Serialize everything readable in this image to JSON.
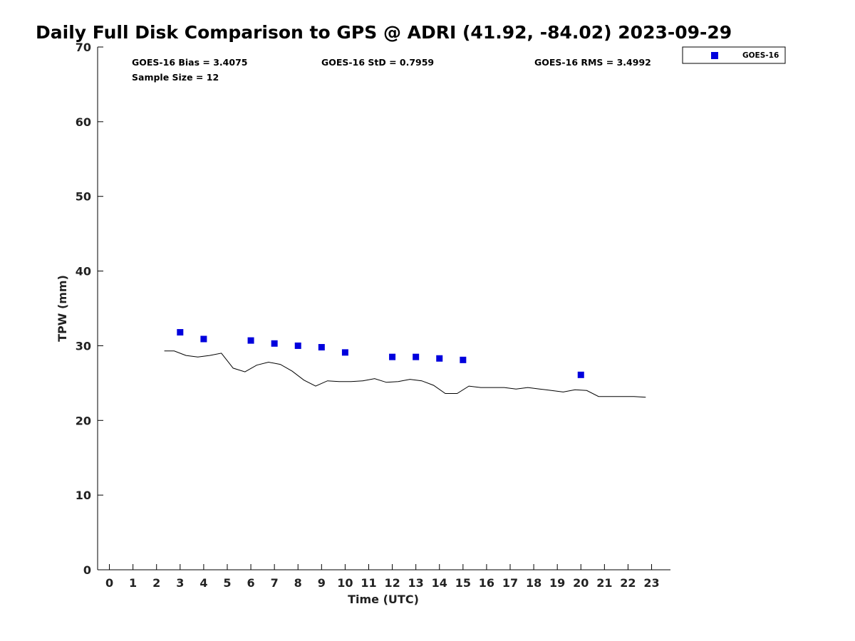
{
  "chart_data": {
    "type": "scatter",
    "title": "Daily Full Disk Comparison to GPS @ ADRI (41.92, -84.02) 2023-09-29",
    "xlabel": "Time (UTC)",
    "ylabel": "TPW (mm)",
    "xlim": [
      -0.5,
      23.8
    ],
    "ylim": [
      0,
      70
    ],
    "x_ticks": [
      0,
      1,
      2,
      3,
      4,
      5,
      6,
      7,
      8,
      9,
      10,
      11,
      12,
      13,
      14,
      15,
      16,
      17,
      18,
      19,
      20,
      21,
      22,
      23
    ],
    "y_ticks": [
      0,
      10,
      20,
      30,
      40,
      50,
      60,
      70
    ],
    "grid": false,
    "legend_position": "top-right",
    "stats": {
      "bias": "GOES-16 Bias = 3.4075",
      "std": "GOES-16 StD = 0.7959",
      "rms": "GOES-16 RMS = 3.4992",
      "sample": "Sample Size = 12"
    },
    "series": [
      {
        "name": "GOES-16",
        "type": "scatter",
        "color": "#0000dd",
        "marker": "square",
        "x": [
          3,
          4,
          6,
          7,
          8,
          9,
          10,
          12,
          13,
          14,
          15,
          20
        ],
        "y": [
          31.8,
          30.9,
          30.7,
          30.3,
          30.0,
          29.8,
          29.1,
          28.5,
          28.5,
          28.3,
          28.1,
          26.1
        ]
      },
      {
        "type": "line",
        "color": "#000000",
        "x": [
          2.33,
          2.75,
          3.25,
          3.75,
          4.25,
          4.75,
          5.25,
          5.75,
          6.25,
          6.75,
          7.25,
          7.75,
          8.25,
          8.75,
          9.25,
          9.75,
          10.25,
          10.75,
          11.25,
          11.75,
          12.25,
          12.75,
          13.25,
          13.75,
          14.25,
          14.75,
          15.25,
          15.75,
          16.25,
          16.75,
          17.25,
          17.75,
          18.25,
          18.75,
          19.25,
          19.75,
          20.25,
          20.75,
          21.25,
          21.75,
          22.25,
          22.75
        ],
        "y": [
          29.3,
          29.3,
          28.7,
          28.5,
          28.7,
          29.0,
          27.0,
          26.5,
          27.4,
          27.8,
          27.5,
          26.6,
          25.4,
          24.6,
          25.3,
          25.2,
          25.2,
          25.3,
          25.6,
          25.1,
          25.2,
          25.5,
          25.3,
          24.7,
          23.6,
          23.6,
          24.6,
          24.4,
          24.4,
          24.4,
          24.2,
          24.4,
          24.2,
          24.0,
          23.8,
          24.1,
          24.0,
          23.2,
          23.2,
          23.2,
          23.2,
          23.1
        ]
      }
    ]
  }
}
